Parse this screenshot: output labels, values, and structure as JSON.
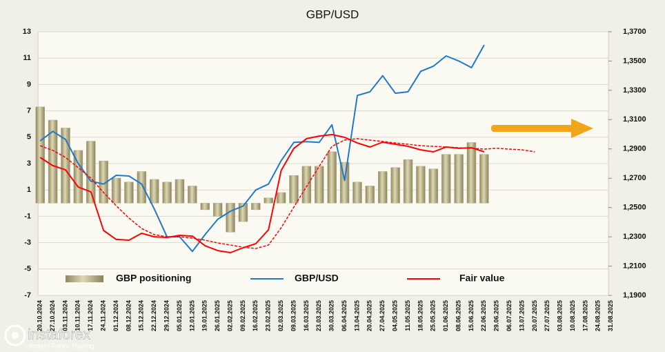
{
  "chart_data": {
    "type": "bar_line",
    "title": "GBP/USD",
    "categories": [
      "20.10.2024",
      "27.10.2024",
      "03.11.2024",
      "10.11.2024",
      "17.11.2024",
      "24.11.2024",
      "01.12.2024",
      "08.12.2024",
      "15.12.2024",
      "22.12.2024",
      "29.12.2024",
      "05.01.2025",
      "12.01.2025",
      "19.01.2025",
      "26.01.2025",
      "02.02.2025",
      "09.02.2025",
      "16.02.2025",
      "23.02.2025",
      "02.03.2025",
      "09.03.2025",
      "16.03.2025",
      "23.03.2025",
      "30.03.2025",
      "06.04.2025",
      "13.04.2025",
      "20.04.2025",
      "27.04.2025",
      "04.05.2025",
      "11.05.2025",
      "18.05.2025",
      "25.05.2025",
      "01.06.2025",
      "08.06.2025",
      "15.06.2025",
      "22.06.2025",
      "29.06.2025",
      "06.07.2025",
      "13.07.2025",
      "20.07.2025",
      "27.07.2025",
      "03.08.2025",
      "10.08.2025",
      "17.08.2025",
      "24.08.2025",
      "31.08.2025"
    ],
    "series": [
      {
        "name": "GBP positioning",
        "kind": "bar",
        "color": "#b8b08a",
        "values": [
          7.3,
          6.3,
          5.7,
          4.0,
          4.7,
          3.2,
          1.9,
          1.6,
          2.4,
          1.8,
          1.6,
          1.8,
          1.3,
          -0.5,
          -1.0,
          -2.2,
          -1.4,
          -0.5,
          0.4,
          0.8,
          2.1,
          2.8,
          2.8,
          3.9,
          3.1,
          1.6,
          1.3,
          2.4,
          2.7,
          3.3,
          2.8,
          2.6,
          3.7,
          3.7,
          4.6,
          3.7,
          null,
          null,
          null,
          null,
          null,
          null,
          null,
          null,
          null,
          null
        ]
      },
      {
        "name": "GBP/USD",
        "kind": "line",
        "axis": "y2",
        "color": "#1f78c8",
        "values": [
          1.2955,
          1.302,
          1.2965,
          1.28,
          1.268,
          1.266,
          1.272,
          1.2715,
          1.266,
          1.249,
          1.23,
          1.23,
          1.22,
          1.2315,
          1.242,
          1.2475,
          1.251,
          1.262,
          1.266,
          1.282,
          1.2945,
          1.295,
          1.2945,
          1.3065,
          1.2685,
          1.3265,
          1.329,
          1.34,
          1.328,
          1.329,
          1.343,
          1.3465,
          1.3535,
          1.35,
          1.3455,
          1.361,
          null,
          null,
          null,
          null,
          null,
          null,
          null,
          null,
          null,
          null
        ]
      },
      {
        "name": "Fair value",
        "kind": "line",
        "axis": "y2",
        "color": "#ff0000",
        "values": [
          1.2842,
          1.2786,
          1.2757,
          1.264,
          1.2607,
          1.2343,
          1.2282,
          1.2277,
          1.2324,
          1.23,
          1.2296,
          1.231,
          1.2305,
          1.2239,
          1.2206,
          1.2192,
          1.2225,
          1.2253,
          1.2348,
          1.2753,
          1.2904,
          1.297,
          1.2988,
          1.2998,
          1.2979,
          1.2941,
          1.2913,
          1.2946,
          1.2932,
          1.2918,
          1.2894,
          1.288,
          1.2913,
          1.2904,
          1.2908,
          1.288,
          null,
          null,
          null,
          null,
          null,
          null,
          null,
          null,
          null,
          null
        ]
      },
      {
        "kind": "line",
        "axis": "y2",
        "color": "#ff0000",
        "style": "dashed",
        "values": [
          1.2922,
          1.289,
          1.2842,
          1.2772,
          1.2701,
          1.2602,
          1.2512,
          1.2428,
          1.2357,
          1.2315,
          1.23,
          1.23,
          1.2291,
          1.2277,
          1.2258,
          1.2244,
          1.2229,
          1.222,
          1.2244,
          1.2362,
          1.2503,
          1.2644,
          1.2781,
          1.2918,
          1.296,
          1.297,
          1.296,
          1.2951,
          1.2941,
          1.2932,
          1.2922,
          1.2918,
          1.2913,
          1.2908,
          1.2904,
          1.2899,
          1.2904,
          1.2899,
          1.2894,
          1.288,
          null,
          null,
          null,
          null,
          null,
          null
        ]
      }
    ],
    "ylim": [
      -7,
      13
    ],
    "yticks": [
      -7,
      -5,
      -3,
      -1,
      1,
      3,
      5,
      7,
      9,
      11,
      13
    ],
    "y2lim": [
      1.19,
      1.37
    ],
    "y2ticks": [
      {
        "value": 1.19,
        "label": "1,1900"
      },
      {
        "value": 1.21,
        "label": "1,2100"
      },
      {
        "value": 1.23,
        "label": "1,2300"
      },
      {
        "value": 1.25,
        "label": "1,2500"
      },
      {
        "value": 1.27,
        "label": "1,2700"
      },
      {
        "value": 1.29,
        "label": "1,2900"
      },
      {
        "value": 1.31,
        "label": "1,3100"
      },
      {
        "value": 1.33,
        "label": "1,3300"
      },
      {
        "value": 1.35,
        "label": "1,3500"
      },
      {
        "value": 1.37,
        "label": "1,3700"
      }
    ],
    "grid": true
  },
  "watermark": {
    "brand": "instaforex",
    "tagline": "Instant Forex Trading"
  }
}
